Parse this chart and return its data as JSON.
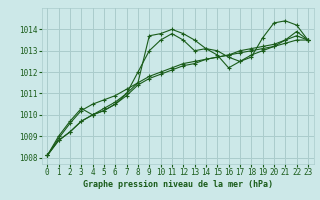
{
  "title": "Graphe pression niveau de la mer (hPa)",
  "bg_color": "#cce8e8",
  "grid_color": "#aacccc",
  "line_color": "#1a5c1a",
  "xlim": [
    -0.5,
    23.5
  ],
  "ylim": [
    1007.7,
    1015.0
  ],
  "yticks": [
    1008,
    1009,
    1010,
    1011,
    1012,
    1013,
    1014
  ],
  "xticks": [
    0,
    1,
    2,
    3,
    4,
    5,
    6,
    7,
    8,
    9,
    10,
    11,
    12,
    13,
    14,
    15,
    16,
    17,
    18,
    19,
    20,
    21,
    22,
    23
  ],
  "series": [
    [
      1008.1,
      1008.8,
      1009.2,
      1009.7,
      1010.0,
      1010.2,
      1010.5,
      1011.0,
      1011.5,
      1013.7,
      1013.8,
      1014.0,
      1013.8,
      1013.5,
      1013.1,
      1013.0,
      1012.7,
      1012.5,
      1012.7,
      1013.6,
      1014.3,
      1014.4,
      1014.2,
      1013.5
    ],
    [
      1008.1,
      1009.0,
      1009.7,
      1010.3,
      1010.0,
      1010.3,
      1010.6,
      1011.0,
      1012.0,
      1013.0,
      1013.5,
      1013.8,
      1013.5,
      1013.0,
      1013.1,
      1012.8,
      1012.2,
      1012.5,
      1012.8,
      1013.0,
      1013.2,
      1013.5,
      1013.9,
      1013.5
    ],
    [
      1008.1,
      1008.8,
      1009.2,
      1009.7,
      1010.0,
      1010.2,
      1010.5,
      1010.9,
      1011.4,
      1011.7,
      1011.9,
      1012.1,
      1012.3,
      1012.4,
      1012.6,
      1012.7,
      1012.8,
      1013.0,
      1013.1,
      1013.2,
      1013.3,
      1013.5,
      1013.7,
      1013.5
    ],
    [
      1008.1,
      1008.9,
      1009.6,
      1010.2,
      1010.5,
      1010.7,
      1010.9,
      1011.2,
      1011.5,
      1011.8,
      1012.0,
      1012.2,
      1012.4,
      1012.5,
      1012.6,
      1012.7,
      1012.8,
      1012.9,
      1013.0,
      1013.1,
      1013.2,
      1013.35,
      1013.5,
      1013.5
    ]
  ]
}
